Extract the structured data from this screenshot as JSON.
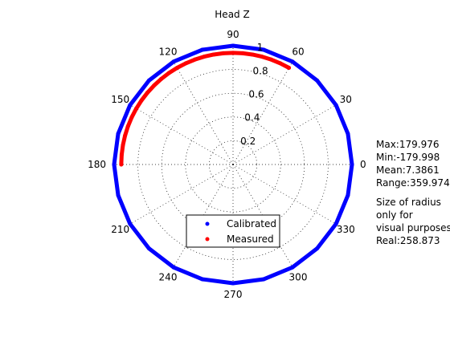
{
  "chart_data": {
    "type": "polar",
    "title": "Head Z",
    "angle_ticks": [
      "0",
      "30",
      "60",
      "90",
      "120",
      "150",
      "180",
      "210",
      "240",
      "270",
      "300",
      "330"
    ],
    "angle_tick_values_deg": [
      0,
      30,
      60,
      90,
      120,
      150,
      180,
      210,
      240,
      270,
      300,
      330
    ],
    "radial_ticks": [
      "0.2",
      "0.4",
      "0.6",
      "0.8",
      "1"
    ],
    "radial_tick_values": [
      0.2,
      0.4,
      0.6,
      0.8,
      1.0
    ],
    "rlim": [
      0,
      1
    ],
    "grid": true,
    "legend_position": "bottom-center",
    "series": [
      {
        "name": "Calibrated",
        "color": "#0000ff",
        "marker": "dot",
        "theta_deg": [
          0,
          15,
          30,
          45,
          60,
          75,
          90,
          105,
          120,
          135,
          150,
          165,
          180,
          195,
          210,
          225,
          240,
          255,
          270,
          285,
          300,
          315,
          330,
          345,
          360
        ],
        "r": [
          1,
          1,
          1,
          1,
          1,
          1,
          1,
          1,
          1,
          1,
          1,
          1,
          1,
          1,
          1,
          1,
          1,
          1,
          1,
          1,
          1,
          1,
          1,
          1,
          1
        ]
      },
      {
        "name": "Measured",
        "color": "#ff0000",
        "marker": "dot",
        "theta_deg": [
          60,
          65,
          70,
          75,
          80,
          85,
          90,
          95,
          100,
          105,
          110,
          115,
          120,
          125,
          130,
          135,
          140,
          145,
          150,
          155,
          160,
          165,
          170,
          175,
          180
        ],
        "r": [
          0.94,
          0.94,
          0.94,
          0.94,
          0.94,
          0.94,
          0.94,
          0.94,
          0.94,
          0.94,
          0.94,
          0.94,
          0.94,
          0.94,
          0.94,
          0.94,
          0.94,
          0.94,
          0.94,
          0.94,
          0.94,
          0.94,
          0.94,
          0.94,
          0.94
        ]
      }
    ]
  },
  "stats": {
    "max": "Max:179.976",
    "min": "Min:-179.998",
    "mean": "Mean:7.3861",
    "range": "Range:359.974",
    "note_line1": "Size of radius",
    "note_line2": "only for",
    "note_line3": "visual purposes",
    "real": "Real:258.873"
  }
}
